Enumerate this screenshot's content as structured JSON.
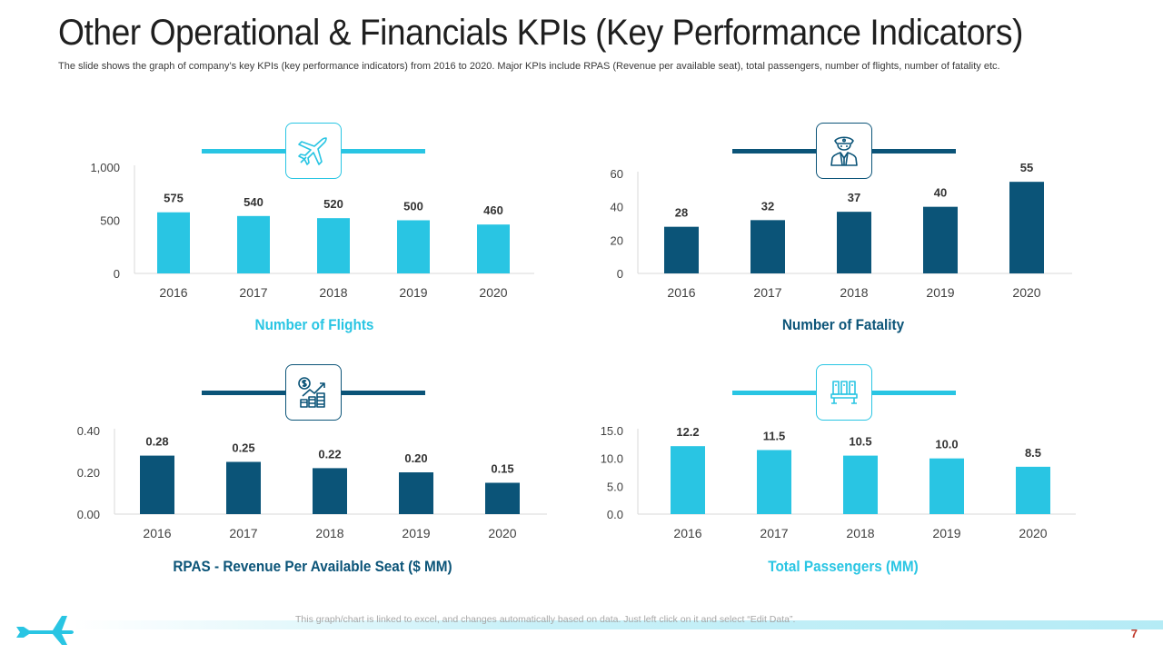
{
  "slide": {
    "title": "Other Operational & Financials KPIs (Key Performance Indicators)",
    "subtitle": "The slide shows the graph of company’s key KPIs (key performance  indicators) from 2016 to 2020. Major KPIs include RPAS (Revenue  per available  seat), total passengers, number of flights, number of fatality etc.",
    "footer_note": "This graph/chart is linked to excel,  and changes automatically based on data. Just left click on it and select “Edit Data”.",
    "page_number": "7"
  },
  "colors": {
    "light": "#29c5e3",
    "dark": "#0b5478",
    "accent_text_light": "#29c5e3",
    "accent_text_dark": "#0b5478"
  },
  "icons": {
    "flights": "airplane-icon",
    "fatality": "pilot-icon",
    "rpas": "money-growth-icon",
    "passengers": "airplane-seats-icon",
    "footer": "airplane-icon"
  },
  "chart_data": [
    {
      "type": "bar",
      "title": "Number of Flights",
      "categories": [
        "2016",
        "2017",
        "2018",
        "2019",
        "2020"
      ],
      "values": [
        575,
        540,
        520,
        500,
        460
      ],
      "value_labels": [
        "575",
        "540",
        "520",
        "500",
        "460"
      ],
      "ylim": [
        0,
        1000
      ],
      "yticks": [
        0,
        500,
        1000
      ],
      "ytick_labels": [
        "0",
        "500",
        "1,000"
      ],
      "color": "#29c5e3"
    },
    {
      "type": "bar",
      "title": "Number of Fatality",
      "categories": [
        "2016",
        "2017",
        "2018",
        "2019",
        "2020"
      ],
      "values": [
        28,
        32,
        37,
        40,
        55
      ],
      "value_labels": [
        "28",
        "32",
        "37",
        "40",
        "55"
      ],
      "ylim": [
        0,
        60
      ],
      "yticks": [
        0,
        20,
        40,
        60
      ],
      "ytick_labels": [
        "0",
        "20",
        "40",
        "60"
      ],
      "color": "#0b5478"
    },
    {
      "type": "bar",
      "title": "RPAS - Revenue Per Available Seat ($ MM)",
      "categories": [
        "2016",
        "2017",
        "2018",
        "2019",
        "2020"
      ],
      "values": [
        0.28,
        0.25,
        0.22,
        0.2,
        0.15
      ],
      "value_labels": [
        "0.28",
        "0.25",
        "0.22",
        "0.20",
        "0.15"
      ],
      "ylim": [
        0,
        0.4
      ],
      "yticks": [
        0,
        0.2,
        0.4
      ],
      "ytick_labels": [
        "0.00",
        "0.20",
        "0.40"
      ],
      "color": "#0b5478"
    },
    {
      "type": "bar",
      "title": "Total Passengers (MM)",
      "categories": [
        "2016",
        "2017",
        "2018",
        "2019",
        "2020"
      ],
      "values": [
        12.2,
        11.5,
        10.5,
        10.0,
        8.5
      ],
      "value_labels": [
        "12.2",
        "11.5",
        "10.5",
        "10.0",
        "8.5"
      ],
      "ylim": [
        0,
        15
      ],
      "yticks": [
        0,
        5,
        10,
        15
      ],
      "ytick_labels": [
        "0.0",
        "5.0",
        "10.0",
        "15.0"
      ],
      "color": "#29c5e3"
    }
  ]
}
